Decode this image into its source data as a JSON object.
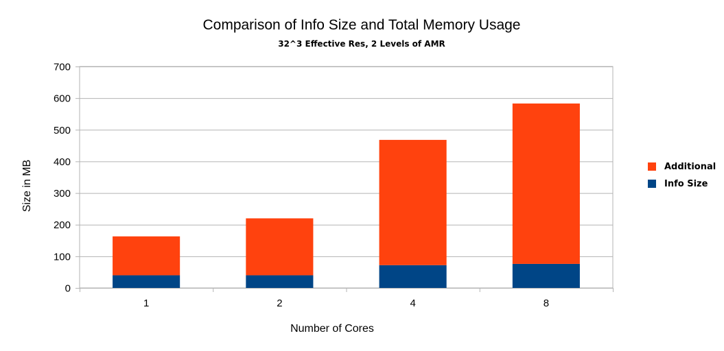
{
  "chart_data": {
    "type": "bar",
    "stacked": true,
    "title": "Comparison of Info Size and Total Memory Usage",
    "subtitle": "32^3 Effective Res, 2 Levels of AMR",
    "xlabel": "Number of Cores",
    "ylabel": "Size in MB",
    "categories": [
      "1",
      "2",
      "4",
      "8"
    ],
    "ylim": [
      0,
      700
    ],
    "yticks": [
      0,
      100,
      200,
      300,
      400,
      500,
      600,
      700
    ],
    "grid": true,
    "legend_position": "right",
    "series": [
      {
        "name": "Info Size",
        "color": "#004586",
        "values": [
          40,
          40,
          72,
          76
        ]
      },
      {
        "name": "Additional",
        "color": "#ff420e",
        "values": [
          123,
          180,
          396,
          507
        ]
      }
    ],
    "legend_order": [
      "Additional",
      "Info Size"
    ]
  }
}
